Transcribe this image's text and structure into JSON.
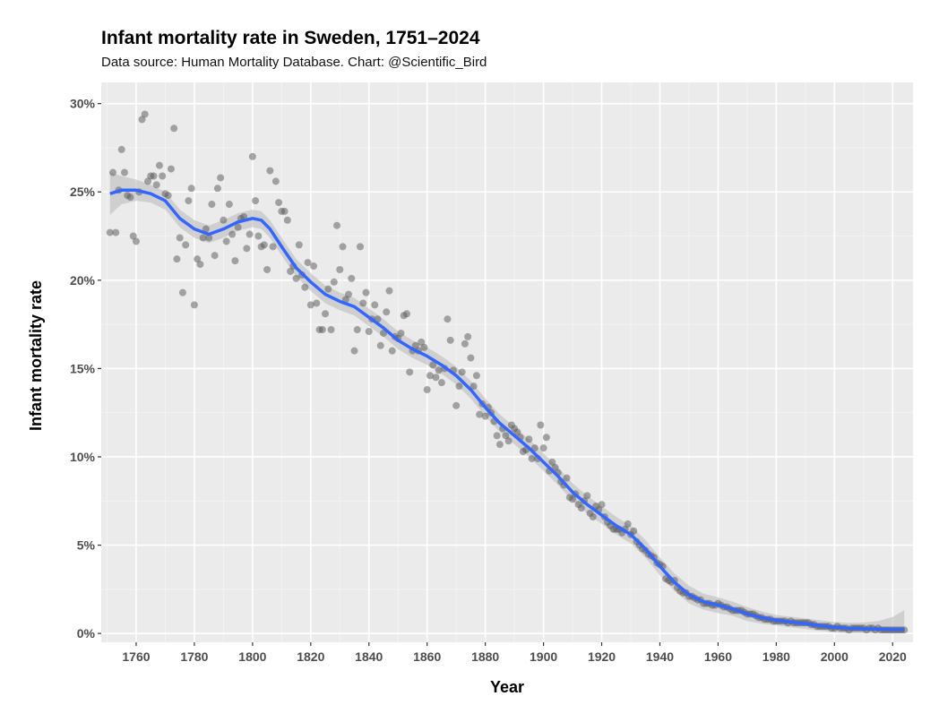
{
  "chart_data": {
    "type": "scatter",
    "title": "Infant mortality rate in Sweden, 1751–2024",
    "subtitle": "Data source: Human Mortality Database. Chart: @Scientific_Bird",
    "xlabel": "Year",
    "ylabel": "Infant mortality rate",
    "xlim": [
      1748,
      2027
    ],
    "ylim": [
      -0.5,
      31.2
    ],
    "x_ticks": [
      1760,
      1780,
      1800,
      1820,
      1840,
      1860,
      1880,
      1900,
      1920,
      1940,
      1960,
      1980,
      2000,
      2020
    ],
    "x_tick_labels": [
      "1760",
      "1780",
      "1800",
      "1820",
      "1840",
      "1860",
      "1880",
      "1900",
      "1920",
      "1940",
      "1960",
      "1980",
      "2000",
      "2020"
    ],
    "y_ticks": [
      0,
      5,
      10,
      15,
      20,
      25,
      30
    ],
    "y_tick_labels": [
      "0%",
      "5%",
      "10%",
      "15%",
      "20%",
      "25%",
      "30%"
    ],
    "grid": true,
    "legend": "none",
    "colors": {
      "points": "#555555",
      "smooth": "#3366FF",
      "band": "#BDBDBD",
      "panel": "#EBEBEB"
    },
    "points": {
      "start_year": 1751,
      "unit": "percent",
      "values": [
        22.7,
        26.1,
        22.7,
        25.1,
        27.4,
        26.1,
        24.8,
        24.7,
        22.5,
        22.2,
        25.0,
        29.1,
        29.4,
        25.6,
        25.9,
        25.9,
        25.4,
        26.5,
        25.9,
        24.9,
        24.8,
        26.3,
        28.6,
        21.2,
        22.4,
        19.3,
        22.0,
        24.5,
        25.2,
        18.6,
        21.2,
        20.9,
        22.4,
        22.9,
        22.4,
        24.3,
        21.4,
        25.2,
        25.8,
        23.4,
        22.2,
        24.3,
        22.6,
        21.1,
        23.0,
        23.5,
        23.6,
        21.8,
        22.6,
        27.0,
        24.5,
        22.5,
        21.9,
        22.0,
        20.6,
        26.2,
        21.9,
        25.6,
        24.4,
        23.9,
        23.9,
        23.4,
        20.5,
        20.8,
        20.1,
        22.0,
        20.3,
        19.6,
        21.0,
        18.6,
        20.8,
        18.7,
        17.2,
        17.2,
        18.1,
        19.5,
        17.2,
        19.9,
        23.1,
        20.6,
        21.9,
        18.9,
        19.2,
        20.1,
        16.0,
        17.2,
        21.9,
        18.7,
        19.3,
        17.1,
        17.8,
        18.6,
        17.8,
        16.3,
        17.0,
        18.2,
        19.4,
        16.0,
        16.8,
        16.7,
        17.0,
        18.0,
        18.1,
        14.8,
        16.0,
        16.3,
        16.0,
        16.5,
        16.2,
        13.8,
        14.6,
        15.2,
        14.5,
        14.9,
        14.2,
        15.0,
        17.8,
        16.6,
        14.9,
        12.9,
        14.0,
        14.8,
        16.4,
        16.8,
        15.6,
        14.0,
        14.6,
        12.4,
        13.0,
        12.3,
        12.8,
        12.5,
        12.0,
        11.2,
        10.7,
        11.6,
        11.2,
        10.9,
        11.8,
        11.6,
        11.4,
        11.1,
        10.3,
        10.4,
        11.0,
        9.9,
        10.5,
        9.9,
        11.8,
        10.5,
        11.1,
        9.2,
        9.7,
        9.4,
        9.1,
        8.6,
        8.4,
        8.8,
        7.7,
        7.6,
        7.9,
        7.3,
        7.1,
        7.5,
        7.8,
        6.8,
        6.6,
        7.2,
        7.0,
        7.3,
        6.6,
        6.3,
        6.1,
        5.9,
        5.9,
        5.9,
        5.7,
        5.9,
        6.2,
        5.6,
        5.8,
        5.2,
        5.0,
        4.8,
        4.7,
        4.5,
        4.4,
        4.3,
        4.0,
        3.9,
        3.8,
        3.1,
        3.0,
        2.9,
        3.0,
        2.6,
        2.4,
        2.3,
        2.3,
        2.1,
        2.1,
        2.0,
        1.9,
        1.9,
        1.7,
        1.7,
        1.7,
        1.6,
        1.6,
        1.7,
        1.6,
        1.5,
        1.5,
        1.4,
        1.3,
        1.3,
        1.3,
        1.3,
        1.2,
        1.1,
        1.1,
        1.1,
        1.0,
        0.9,
        0.9,
        0.8,
        0.8,
        0.8,
        0.7,
        0.7,
        0.7,
        0.7,
        0.7,
        0.6,
        0.7,
        0.6,
        0.6,
        0.6,
        0.6,
        0.6,
        0.6,
        0.5,
        0.5,
        0.4,
        0.4,
        0.4,
        0.4,
        0.4,
        0.3,
        0.3,
        0.4,
        0.3,
        0.3,
        0.3,
        0.2,
        0.3,
        0.3,
        0.3,
        0.3,
        0.3,
        0.2,
        0.3,
        0.3,
        0.2,
        0.3,
        0.2,
        0.2,
        0.2,
        0.2,
        0.2,
        0.2,
        0.2,
        0.2,
        0.2
      ]
    },
    "smooth": {
      "method": "loess",
      "years": [
        1751,
        1755,
        1760,
        1765,
        1770,
        1775,
        1780,
        1785,
        1790,
        1795,
        1800,
        1803,
        1806,
        1810,
        1815,
        1820,
        1825,
        1830,
        1835,
        1840,
        1845,
        1850,
        1855,
        1860,
        1865,
        1870,
        1875,
        1880,
        1885,
        1890,
        1895,
        1900,
        1905,
        1910,
        1915,
        1920,
        1925,
        1930,
        1935,
        1940,
        1945,
        1950,
        1955,
        1960,
        1965,
        1970,
        1975,
        1980,
        1985,
        1990,
        1995,
        2000,
        2005,
        2010,
        2015,
        2020,
        2024
      ],
      "values": [
        24.9,
        25.1,
        25.1,
        24.9,
        24.5,
        23.5,
        22.9,
        22.6,
        22.9,
        23.3,
        23.5,
        23.4,
        22.9,
        21.9,
        20.7,
        19.9,
        19.2,
        18.8,
        18.5,
        17.9,
        17.3,
        16.6,
        16.1,
        15.7,
        15.2,
        14.6,
        13.8,
        12.8,
        11.9,
        11.2,
        10.5,
        9.7,
        8.9,
        8.0,
        7.3,
        6.7,
        6.1,
        5.6,
        4.8,
        3.8,
        2.9,
        2.2,
        1.8,
        1.6,
        1.4,
        1.1,
        0.9,
        0.75,
        0.65,
        0.55,
        0.45,
        0.35,
        0.3,
        0.27,
        0.25,
        0.23,
        0.22
      ],
      "ci_halfwidth": [
        1.2,
        0.8,
        0.6,
        0.5,
        0.5,
        0.5,
        0.5,
        0.5,
        0.5,
        0.5,
        0.5,
        0.5,
        0.5,
        0.5,
        0.5,
        0.5,
        0.5,
        0.5,
        0.5,
        0.5,
        0.5,
        0.5,
        0.5,
        0.5,
        0.5,
        0.5,
        0.5,
        0.5,
        0.5,
        0.5,
        0.5,
        0.5,
        0.5,
        0.5,
        0.5,
        0.5,
        0.5,
        0.5,
        0.5,
        0.5,
        0.5,
        0.5,
        0.45,
        0.45,
        0.4,
        0.4,
        0.35,
        0.3,
        0.3,
        0.3,
        0.3,
        0.3,
        0.3,
        0.35,
        0.45,
        0.7,
        1.1
      ]
    }
  }
}
